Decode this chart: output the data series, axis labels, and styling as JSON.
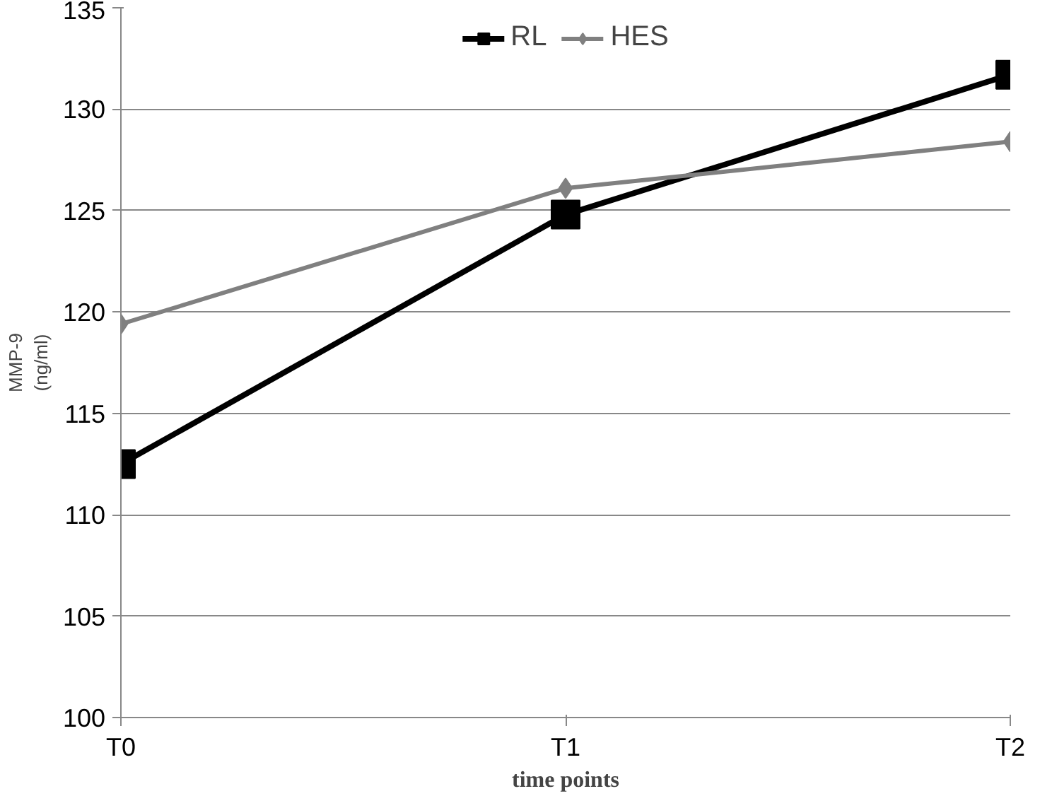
{
  "chart_data": {
    "type": "line",
    "xlabel": "time points",
    "ylabel": "MMP-9\n(ng/ml)",
    "categories": [
      "T0",
      "T1",
      "T2"
    ],
    "series": [
      {
        "name": "RL",
        "color": "#000000",
        "marker": "square",
        "values": [
          112.5,
          124.8,
          131.7
        ]
      },
      {
        "name": "HES",
        "color": "#808080",
        "marker": "diamond",
        "values": [
          119.4,
          126.1,
          128.4
        ]
      }
    ],
    "ylim": [
      100,
      135
    ],
    "yticks": [
      100,
      105,
      110,
      115,
      120,
      125,
      130,
      135
    ],
    "grid": "y",
    "legend": "top",
    "line_style": "solid"
  }
}
